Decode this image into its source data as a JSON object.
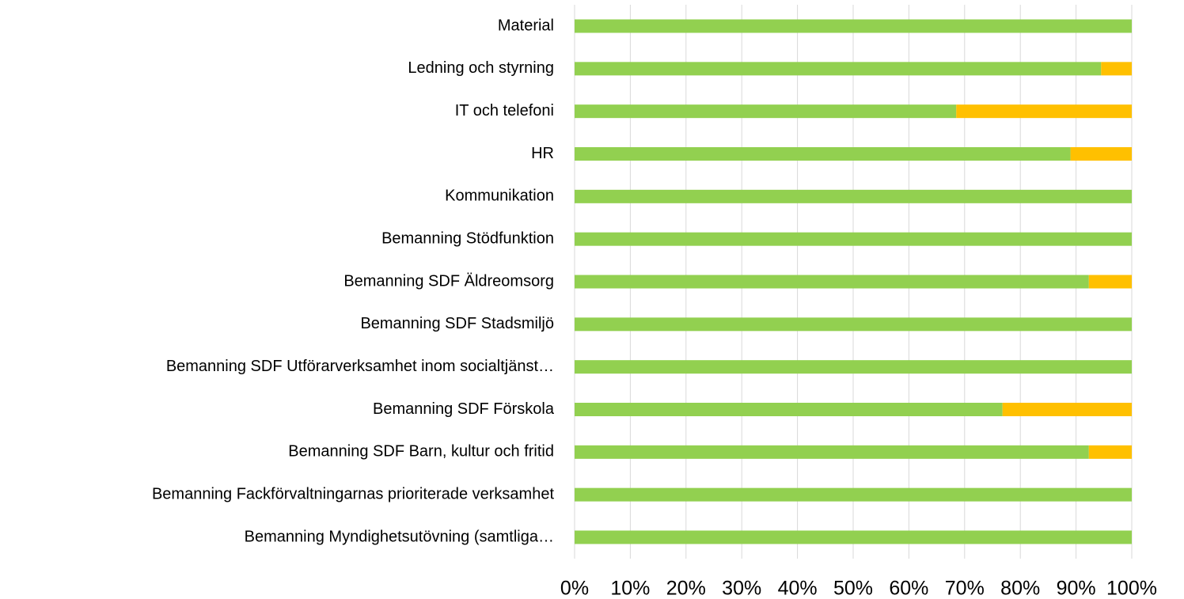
{
  "chart_data": {
    "type": "stacked-bar-horizontal",
    "categories": [
      "Material",
      "Ledning och styrning",
      "IT och telefoni",
      "HR",
      "Kommunikation",
      "Bemanning Stödfunktion",
      "Bemanning SDF Äldreomsorg",
      "Bemanning SDF Stadsmiljö",
      "Bemanning SDF Utförarverksamhet inom socialtjänst…",
      "Bemanning SDF Förskola",
      "Bemanning SDF Barn, kultur och fritid",
      "Bemanning Fackförvaltningarnas prioriterade verksamhet",
      "Bemanning Myndighetsutövning (samtliga…"
    ],
    "series": [
      {
        "color": "#92d050",
        "values": [
          100,
          94.5,
          68.5,
          89,
          100,
          100,
          92.3,
          100,
          100,
          76.8,
          92.3,
          100,
          100
        ]
      },
      {
        "color": "#ffc000",
        "values": [
          0,
          5.5,
          31.5,
          11,
          0,
          0,
          7.7,
          0,
          0,
          23.2,
          7.7,
          0,
          0
        ]
      }
    ],
    "xlim": [
      0,
      100
    ],
    "xticks": [
      {
        "value": 0,
        "label": "0%"
      },
      {
        "value": 10,
        "label": "10%"
      },
      {
        "value": 20,
        "label": "20%"
      },
      {
        "value": 30,
        "label": "30%"
      },
      {
        "value": 40,
        "label": "40%"
      },
      {
        "value": 50,
        "label": "50%"
      },
      {
        "value": 60,
        "label": "60%"
      },
      {
        "value": 70,
        "label": "70%"
      },
      {
        "value": 80,
        "label": "80%"
      },
      {
        "value": 90,
        "label": "90%"
      },
      {
        "value": 100,
        "label": "100%"
      }
    ],
    "grid": true
  }
}
